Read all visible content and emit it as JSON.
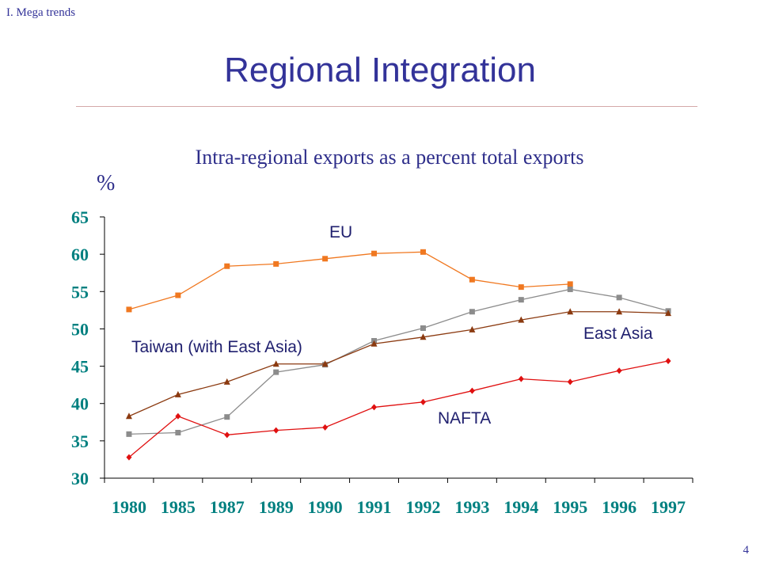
{
  "header": {
    "section_label": "I. Mega trends"
  },
  "slide": {
    "title": "Regional Integration",
    "page_number": "4"
  },
  "chart_data": {
    "type": "line",
    "title": "Intra-regional exports as a percent total exports",
    "ylabel": "%",
    "xlabel": "",
    "ylim": [
      30,
      65
    ],
    "yticks": [
      "30",
      "35",
      "40",
      "45",
      "50",
      "55",
      "60",
      "65"
    ],
    "categories": [
      "1980",
      "1985",
      "1987",
      "1989",
      "1990",
      "1991",
      "1992",
      "1993",
      "1994",
      "1995",
      "1996",
      "1997"
    ],
    "grid": false,
    "series": [
      {
        "name": "EU",
        "color": "#f07820",
        "marker": "square",
        "values": [
          52.6,
          54.5,
          58.4,
          58.7,
          59.4,
          60.1,
          60.3,
          56.6,
          55.6,
          56.0,
          null,
          null
        ]
      },
      {
        "name": "East Asia",
        "color": "#8c8c8c",
        "marker": "square",
        "values": [
          35.9,
          36.1,
          38.2,
          44.2,
          45.2,
          48.4,
          50.1,
          52.3,
          53.9,
          55.3,
          54.2,
          52.4
        ]
      },
      {
        "name": "Taiwan (with East Asia)",
        "color": "#8b3a10",
        "marker": "triangle",
        "values": [
          38.3,
          41.2,
          42.9,
          45.3,
          45.3,
          48.0,
          48.9,
          49.9,
          51.2,
          52.3,
          52.3,
          52.1
        ]
      },
      {
        "name": "NAFTA",
        "color": "#e01010",
        "marker": "diamond",
        "values": [
          32.8,
          38.3,
          35.8,
          36.4,
          36.8,
          39.5,
          40.2,
          41.7,
          43.3,
          42.9,
          44.4,
          45.7
        ]
      }
    ]
  }
}
